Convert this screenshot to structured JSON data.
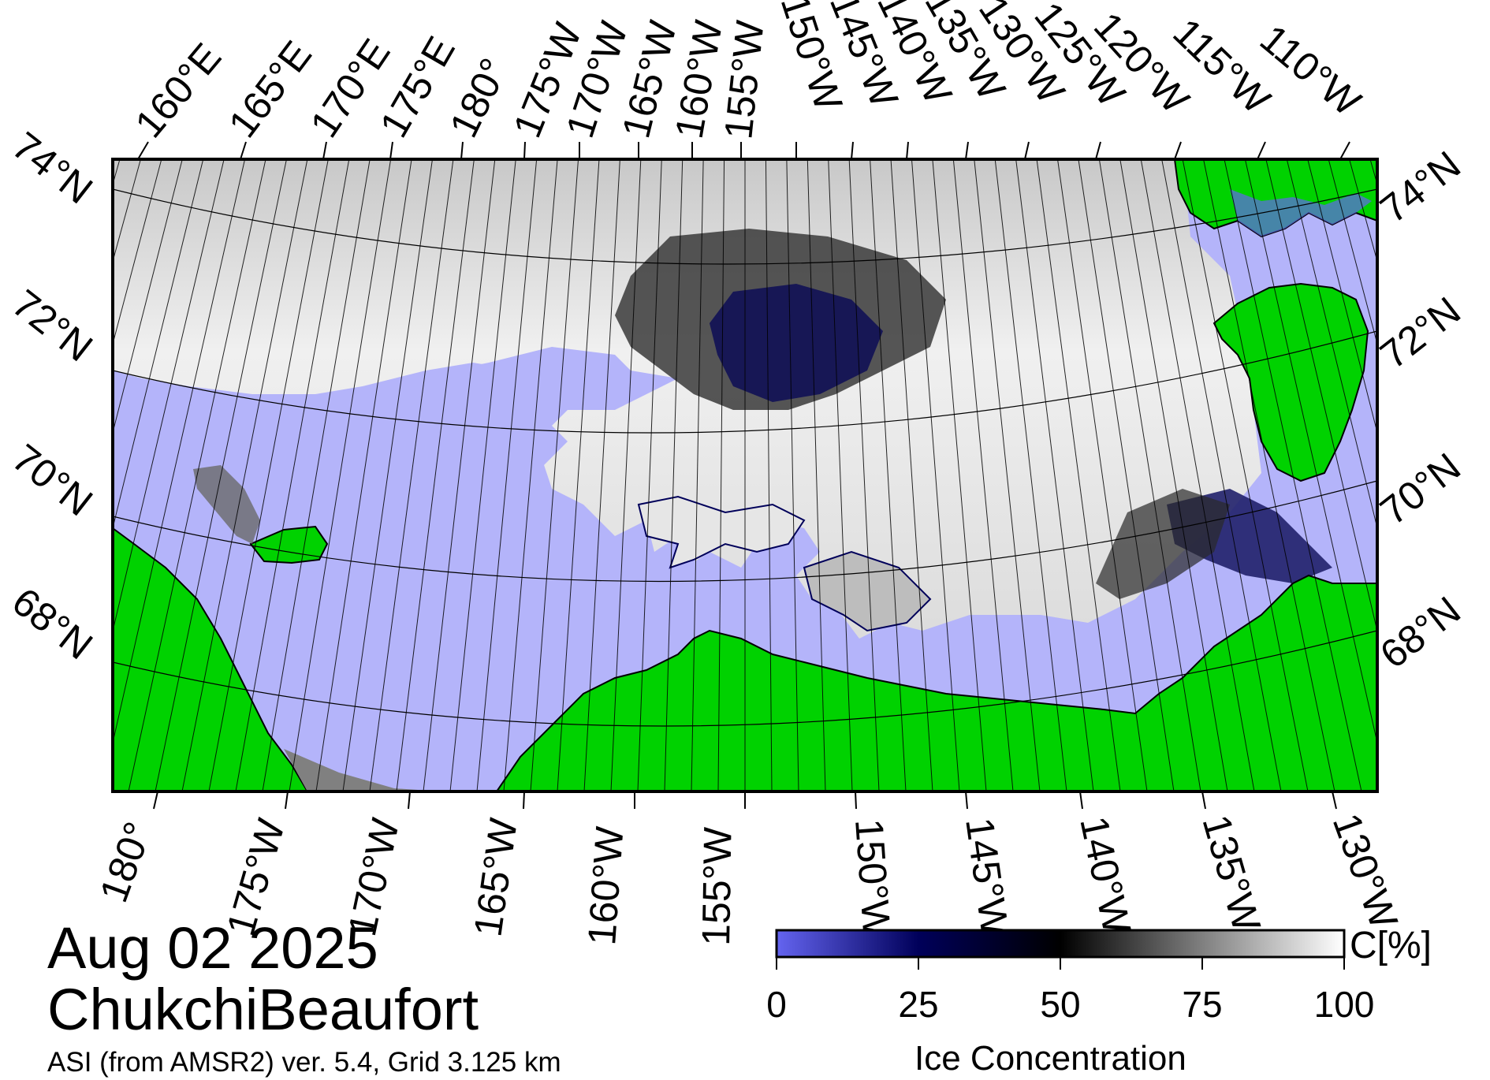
{
  "date": "Aug 02 2025",
  "region": "ChukchiBeaufort",
  "product": "ASI (from AMSR2) ver. 5.4,  Grid 3.125 km",
  "colors": {
    "land": "#00d200",
    "open_water": "#b4b4fa",
    "no_data": "#808080",
    "ice_low": "#6464f0",
    "ice_mid": "#00005a",
    "ice_50": "#000000",
    "ice_high": "#ffffff"
  },
  "top_lon_labels": [
    "160°E",
    "165°E",
    "170°E",
    "175°E",
    "180°",
    "175°W",
    "170°W",
    "165°W",
    "160°W",
    "155°W",
    "150°W",
    "145°W",
    "140°W",
    "135°W",
    "130°W",
    "125°W",
    "120°W",
    "115°W",
    "110°W"
  ],
  "bottom_lon_labels": [
    "180°",
    "175°W",
    "170°W",
    "165°W",
    "160°W",
    "155°W",
    "150°W",
    "145°W",
    "140°W",
    "135°W",
    "130°W"
  ],
  "left_lat_labels": [
    "74°N",
    "72°N",
    "70°N",
    "68°N"
  ],
  "right_lat_labels": [
    "74°N",
    "72°N",
    "70°N",
    "68°N"
  ],
  "colorbar": {
    "title": "Ice Concentration",
    "unit": "C[%]",
    "ticks": [
      "0",
      "25",
      "50",
      "75",
      "100"
    ],
    "range": [
      0,
      100
    ]
  }
}
